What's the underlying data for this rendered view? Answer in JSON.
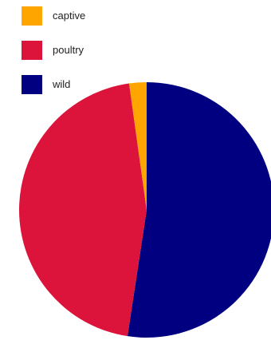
{
  "chart_data": {
    "type": "pie",
    "title": "",
    "legend_position": "top-left",
    "slices": [
      {
        "label": "captive",
        "value": 2.2,
        "color": "#FFA500"
      },
      {
        "label": "poultry",
        "value": 45.4,
        "color": "#DC143C"
      },
      {
        "label": "wild",
        "value": 52.4,
        "color": "#000080"
      }
    ]
  }
}
